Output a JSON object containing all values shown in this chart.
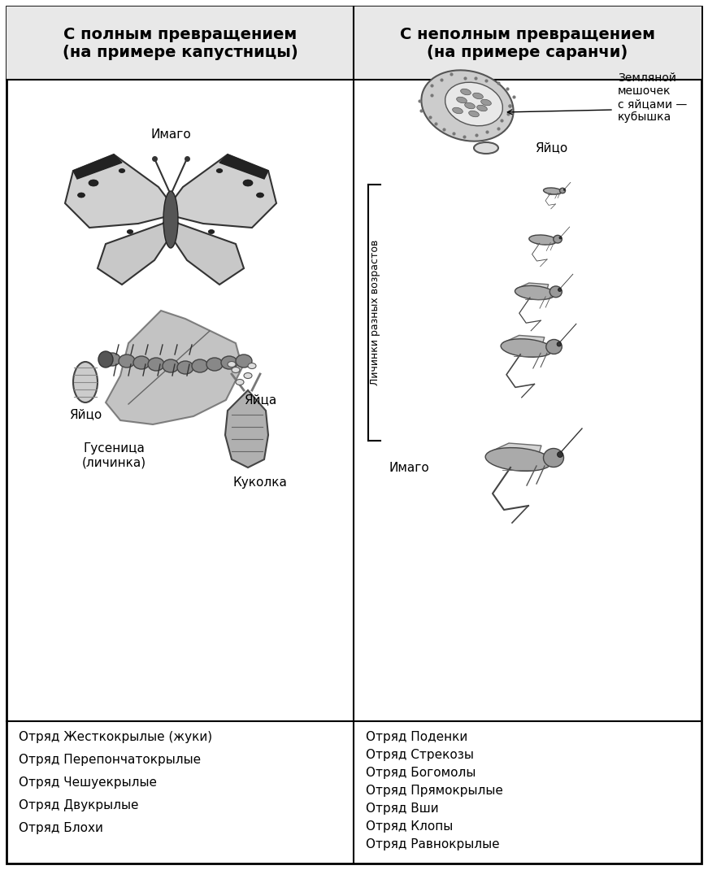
{
  "title_left": "С полным превращением\n(на примере капустницы)",
  "title_right": "С неполным превращением\n(на примере саранчи)",
  "left_labels": {
    "imago": "Имаго",
    "egg_left": "Яйцо",
    "eggs_right": "Яйца",
    "caterpillar": "Гусеница\n(личинка)",
    "pupa": "Куколка"
  },
  "right_labels": {
    "kubushka": "Земляной\nмешочек\nс яйцами —\nкубышка",
    "egg": "Яйцо",
    "larvae_bracket": "Личинки разных возрастов",
    "imago": "Имаго"
  },
  "left_orders": [
    "Отряд Жесткокрылые (жуки)",
    "Отряд Перепончатокрылые",
    "Отряд Чешуекрылые",
    "Отряд Двукрылые",
    "Отряд Блохи"
  ],
  "right_orders": [
    "Отряд Поденки",
    "Отряд Стрекозы",
    "Отряд Богомолы",
    "Отряд Прямокрылые",
    "Отряд Вши",
    "Отряд Клопы",
    "Отряд Равнокрылые"
  ],
  "bg_color": "#ffffff",
  "border_color": "#000000",
  "text_color": "#000000",
  "title_bg": "#f0f0f0",
  "header_fontsize": 14,
  "body_fontsize": 11,
  "label_fontsize": 11
}
